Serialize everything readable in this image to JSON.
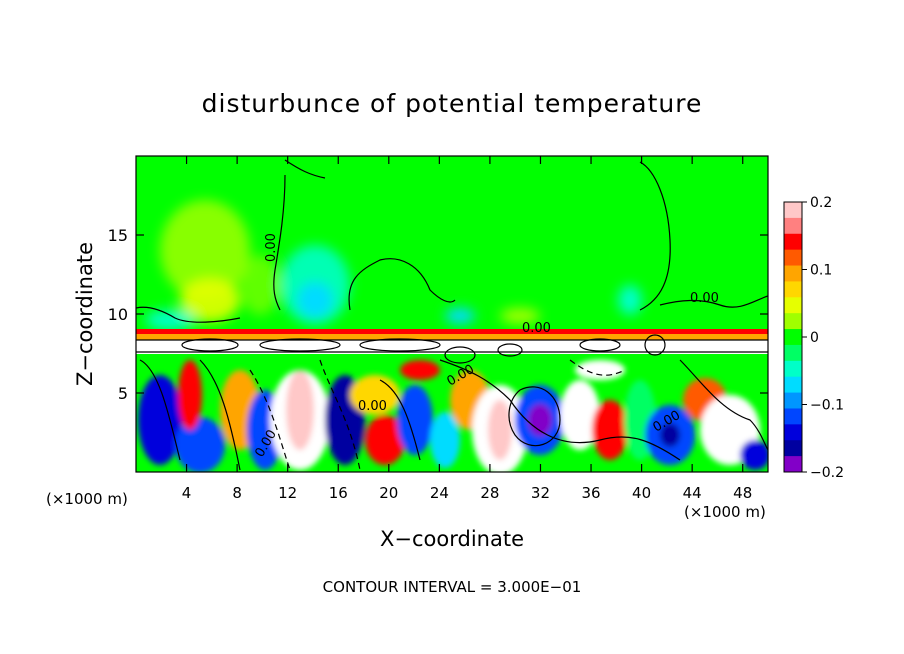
{
  "chart_data": {
    "type": "heatmap",
    "title": "disturbunce of potential temperature",
    "xlabel": "X−coordinate",
    "ylabel": "Z−coordinate",
    "x_unit": "(×1000 m)",
    "y_unit": "(×1000 m)",
    "xlim": [
      0,
      50
    ],
    "ylim": [
      0,
      20
    ],
    "x_ticks": [
      4,
      8,
      12,
      16,
      20,
      24,
      28,
      32,
      36,
      40,
      44,
      48
    ],
    "y_ticks": [
      5,
      10,
      15
    ],
    "contour_interval_label": "CONTOUR INTERVAL = 3.000E−01",
    "contour_labels": [
      "0.00",
      "0.00",
      "0.00",
      "0.00",
      "0.00",
      "0.00",
      "0.00"
    ],
    "colorbar": {
      "min": -0.2,
      "max": 0.2,
      "tick_labels": [
        "0.2",
        "0.1",
        "0",
        "−0.1",
        "−0.2"
      ],
      "tick_values": [
        0.2,
        0.1,
        0,
        -0.1,
        -0.2
      ],
      "colors": [
        "#ffc8c8",
        "#ff8080",
        "#ff0000",
        "#ff5a00",
        "#ffa500",
        "#ffd700",
        "#e6ff00",
        "#a0ff00",
        "#00ff00",
        "#00ff64",
        "#00ffc8",
        "#00dcff",
        "#0096ff",
        "#0046ff",
        "#0000dc",
        "#0000a0",
        "#8200c8"
      ]
    }
  }
}
